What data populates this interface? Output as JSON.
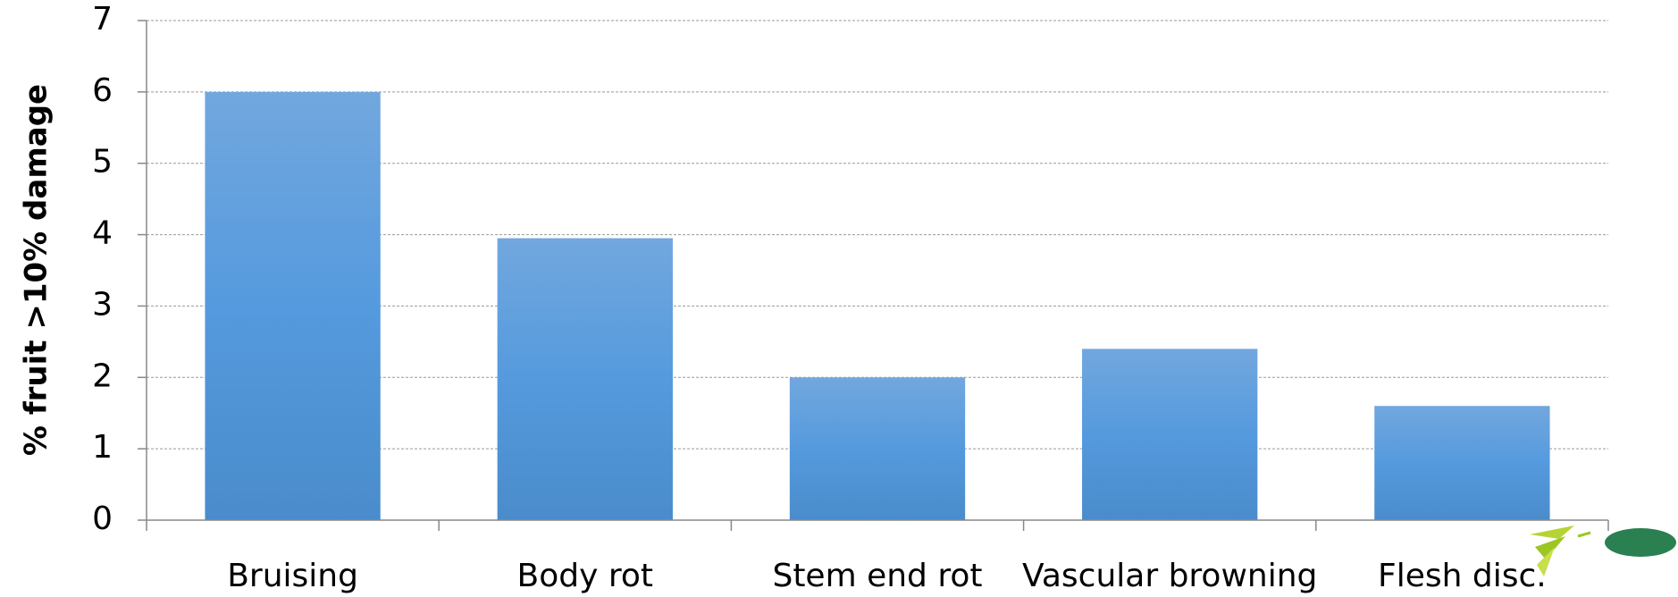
{
  "chart_data": {
    "type": "bar",
    "y_label": "% fruit >10% damage",
    "categories": [
      "Bruising",
      "Body rot",
      "Stem end rot",
      "Vascular browning",
      "Flesh disc."
    ],
    "values": [
      6,
      3.95,
      2,
      2.4,
      1.6
    ],
    "color": "#5b9bd5",
    "ylim": [
      0,
      7
    ],
    "yticks": [
      0,
      1,
      2,
      3,
      4,
      5,
      6,
      7
    ],
    "grid": true
  }
}
